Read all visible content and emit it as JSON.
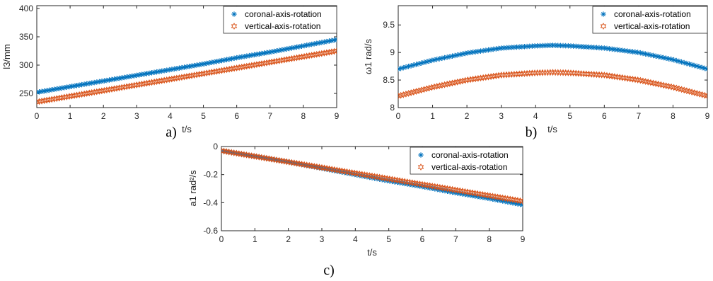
{
  "colors": {
    "coronal": "#0072BD",
    "vertical": "#D95319"
  },
  "chart_data": [
    {
      "type": "scatter",
      "panel_label": "a)",
      "xlabel": "t/s",
      "ylabel": "l3/mm",
      "xlim": [
        0,
        9
      ],
      "ylim": [
        225,
        405
      ],
      "x_ticks": [
        "0",
        "1",
        "2",
        "3",
        "4",
        "5",
        "6",
        "7",
        "8",
        "9"
      ],
      "y_ticks": [
        "250",
        "300",
        "350",
        "400"
      ],
      "legend_position": "top-right",
      "series": [
        {
          "name": "coronal-axis-rotation",
          "marker": "asterisk",
          "color_key": "coronal",
          "x": [
            0,
            1,
            2,
            3,
            4,
            5,
            6,
            7,
            8,
            9
          ],
          "y": [
            252,
            262,
            272,
            282,
            292,
            302,
            313,
            323,
            334,
            345
          ]
        },
        {
          "name": "vertical-axis-rotation",
          "marker": "hexagram",
          "color_key": "vertical",
          "x": [
            0,
            1,
            2,
            3,
            4,
            5,
            6,
            7,
            8,
            9
          ],
          "y": [
            235,
            245,
            255,
            265,
            275,
            285,
            295,
            305,
            315,
            325
          ]
        }
      ]
    },
    {
      "type": "scatter",
      "panel_label": "b)",
      "xlabel": "t/s",
      "ylabel": "ω1 rad/s",
      "xlim": [
        0,
        9
      ],
      "ylim": [
        8,
        9.85
      ],
      "x_ticks": [
        "0",
        "1",
        "2",
        "3",
        "4",
        "5",
        "6",
        "7",
        "8",
        "9"
      ],
      "y_ticks": [
        "8",
        "8.5",
        "9",
        "9.5"
      ],
      "legend_position": "top-right",
      "series": [
        {
          "name": "coronal-axis-rotation",
          "marker": "asterisk",
          "color_key": "coronal",
          "x": [
            0,
            1,
            2,
            3,
            4,
            4.5,
            5,
            6,
            7,
            8,
            9
          ],
          "y": [
            8.7,
            8.86,
            8.99,
            9.08,
            9.12,
            9.13,
            9.12,
            9.08,
            9.0,
            8.87,
            8.7
          ]
        },
        {
          "name": "vertical-axis-rotation",
          "marker": "hexagram",
          "color_key": "vertical",
          "x": [
            0,
            1,
            2,
            3,
            4,
            4.5,
            5,
            6,
            7,
            8,
            9
          ],
          "y": [
            8.21,
            8.37,
            8.5,
            8.59,
            8.63,
            8.64,
            8.63,
            8.59,
            8.5,
            8.37,
            8.21
          ]
        }
      ]
    },
    {
      "type": "scatter",
      "panel_label": "c)",
      "xlabel": "t/s",
      "ylabel": "a1 rad²/s",
      "xlim": [
        0,
        9
      ],
      "ylim": [
        -0.6,
        0
      ],
      "x_ticks": [
        "0",
        "1",
        "2",
        "3",
        "4",
        "5",
        "6",
        "7",
        "8",
        "9"
      ],
      "y_ticks": [
        "0",
        "-0.2",
        "-0.4",
        "-0.6"
      ],
      "legend_position": "top-right",
      "series": [
        {
          "name": "coronal-axis-rotation",
          "marker": "asterisk",
          "color_key": "coronal",
          "x": [
            0,
            1,
            2,
            3,
            4,
            5,
            6,
            7,
            8,
            9
          ],
          "y": [
            -0.03,
            -0.07,
            -0.11,
            -0.155,
            -0.2,
            -0.245,
            -0.285,
            -0.33,
            -0.37,
            -0.415
          ]
        },
        {
          "name": "vertical-axis-rotation",
          "marker": "hexagram",
          "color_key": "vertical",
          "x": [
            0,
            1,
            2,
            3,
            4,
            5,
            6,
            7,
            8,
            9
          ],
          "y": [
            -0.03,
            -0.07,
            -0.11,
            -0.15,
            -0.19,
            -0.23,
            -0.27,
            -0.31,
            -0.35,
            -0.39
          ]
        }
      ]
    }
  ]
}
